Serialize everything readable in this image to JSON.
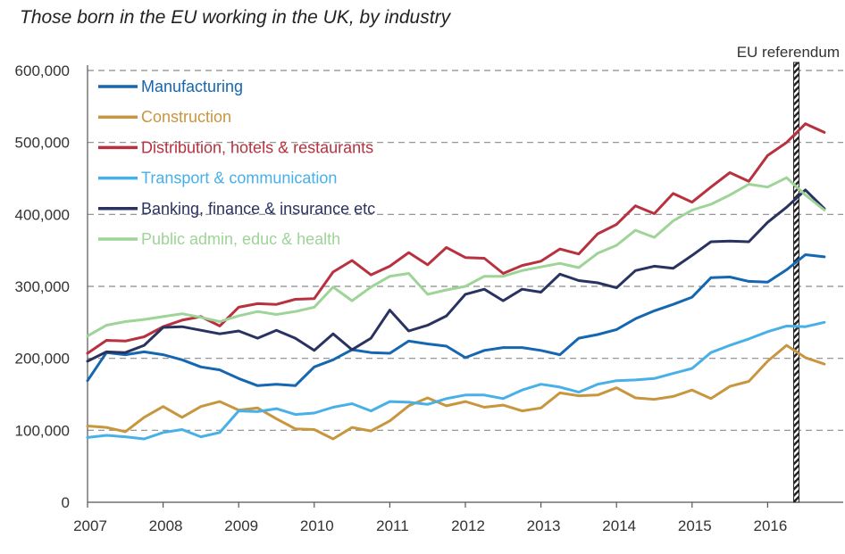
{
  "chart_data": {
    "type": "line",
    "title": "Those born in the EU working in the UK, by industry",
    "xlabel": "",
    "ylabel": "",
    "ylim": [
      0,
      600000
    ],
    "yticks": [
      0,
      100000,
      200000,
      300000,
      400000,
      500000,
      600000
    ],
    "ytick_labels": [
      "0",
      "100,000",
      "200,000",
      "300,000",
      "400,000",
      "500,000",
      "600,000"
    ],
    "xlim": [
      2007,
      2016.88
    ],
    "xticks": [
      2007,
      2008,
      2009,
      2010,
      2011,
      2012,
      2013,
      2014,
      2015,
      2016
    ],
    "xtick_labels": [
      "2007",
      "2008",
      "2009",
      "2010",
      "2011",
      "2012",
      "2013",
      "2014",
      "2015",
      "2016"
    ],
    "grid": "horizontal dashed",
    "legend_position": "top-left",
    "annotation": {
      "label": "EU referendum",
      "x": 2016.38
    },
    "x": [
      2007.0,
      2007.25,
      2007.5,
      2007.75,
      2008.0,
      2008.25,
      2008.5,
      2008.75,
      2009.0,
      2009.25,
      2009.5,
      2009.75,
      2010.0,
      2010.25,
      2010.5,
      2010.75,
      2011.0,
      2011.25,
      2011.5,
      2011.75,
      2012.0,
      2012.25,
      2012.5,
      2012.75,
      2013.0,
      2013.25,
      2013.5,
      2013.75,
      2014.0,
      2014.25,
      2014.5,
      2014.75,
      2015.0,
      2015.25,
      2015.5,
      2015.75,
      2016.0,
      2016.25,
      2016.5,
      2016.75
    ],
    "series": [
      {
        "name": "Manufacturing",
        "color": "#1467b0",
        "values": [
          169000,
          208000,
          205000,
          209000,
          205000,
          198000,
          188000,
          184000,
          172000,
          162000,
          164000,
          162000,
          188000,
          198000,
          212000,
          208000,
          207000,
          224000,
          220000,
          217000,
          201000,
          211000,
          215000,
          215000,
          211000,
          205000,
          228000,
          233000,
          240000,
          255000,
          266000,
          275000,
          285000,
          312000,
          313000,
          307000,
          306000,
          323000,
          344000,
          341000
        ]
      },
      {
        "name": "Construction",
        "color": "#c8963e",
        "values": [
          106000,
          104000,
          98000,
          118000,
          133000,
          118000,
          133000,
          140000,
          128000,
          131000,
          116000,
          102000,
          101000,
          88000,
          104000,
          99000,
          113000,
          134000,
          145000,
          134000,
          140000,
          132000,
          135000,
          127000,
          131000,
          152000,
          148000,
          149000,
          159000,
          145000,
          143000,
          147000,
          156000,
          144000,
          161000,
          168000,
          196000,
          218000,
          201000,
          192000
        ]
      },
      {
        "name": "Distribution, hotels & restaurants",
        "color": "#b8313e",
        "values": [
          207000,
          225000,
          224000,
          230000,
          244000,
          253000,
          258000,
          245000,
          271000,
          276000,
          275000,
          282000,
          283000,
          320000,
          336000,
          316000,
          328000,
          347000,
          330000,
          354000,
          340000,
          339000,
          318000,
          329000,
          335000,
          352000,
          345000,
          373000,
          386000,
          412000,
          401000,
          429000,
          417000,
          438000,
          458000,
          446000,
          482000,
          500000,
          526000,
          514000
        ]
      },
      {
        "name": "Transport & communication",
        "color": "#48b0e8",
        "values": [
          90000,
          93000,
          91000,
          88000,
          97000,
          101000,
          91000,
          97000,
          127000,
          126000,
          130000,
          122000,
          124000,
          132000,
          137000,
          127000,
          140000,
          139000,
          136000,
          144000,
          149000,
          149000,
          144000,
          156000,
          164000,
          160000,
          153000,
          164000,
          169000,
          170000,
          172000,
          179000,
          186000,
          208000,
          218000,
          227000,
          237000,
          245000,
          244000,
          250000
        ]
      },
      {
        "name": "Banking, finance & insurance etc",
        "color": "#2a3260",
        "values": [
          196000,
          209000,
          208000,
          218000,
          243000,
          244000,
          239000,
          234000,
          238000,
          228000,
          239000,
          228000,
          211000,
          234000,
          212000,
          228000,
          267000,
          238000,
          246000,
          259000,
          289000,
          296000,
          280000,
          296000,
          292000,
          317000,
          308000,
          305000,
          298000,
          322000,
          328000,
          325000,
          343000,
          362000,
          363000,
          362000,
          389000,
          410000,
          434000,
          408000
        ]
      },
      {
        "name": "Public admin, educ & health",
        "color": "#9ed497",
        "values": [
          231000,
          246000,
          251000,
          254000,
          258000,
          262000,
          257000,
          251000,
          259000,
          265000,
          261000,
          265000,
          271000,
          299000,
          280000,
          299000,
          314000,
          318000,
          289000,
          295000,
          300000,
          314000,
          314000,
          322000,
          327000,
          332000,
          326000,
          346000,
          357000,
          378000,
          368000,
          391000,
          406000,
          414000,
          427000,
          442000,
          438000,
          451000,
          427000,
          406000
        ]
      }
    ]
  }
}
